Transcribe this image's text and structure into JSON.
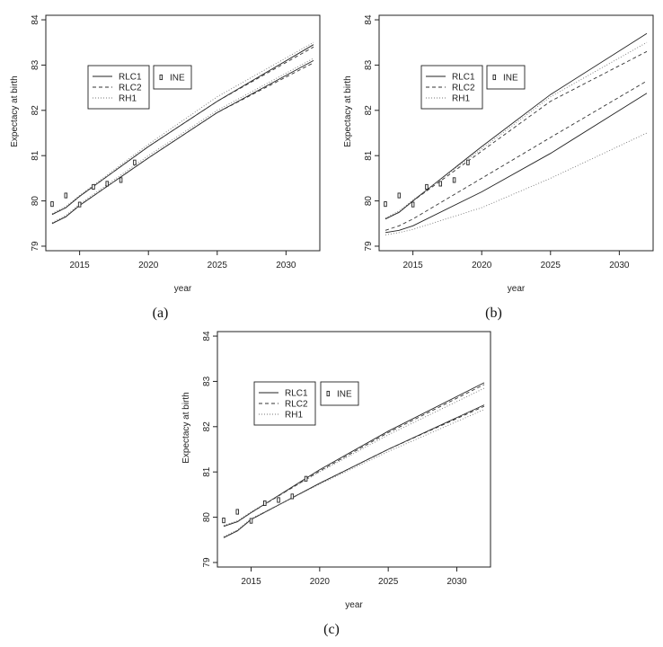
{
  "chart_data": [
    {
      "type": "line",
      "panel_label": "(a)",
      "xlabel": "year",
      "ylabel": "Expectacy at birth",
      "xlim": [
        2013,
        2032
      ],
      "ylim": [
        78.9,
        84.1
      ],
      "xticks": [
        "2015",
        "2020",
        "2025",
        "2030"
      ],
      "yticks": [
        "79",
        "80",
        "81",
        "82",
        "83",
        "84"
      ],
      "legend_location": "upper-left",
      "series": [
        {
          "name": "RLC1",
          "style": "solid",
          "x": [
            2013,
            2014,
            2015,
            2020,
            2025,
            2032
          ],
          "values": [
            79.7,
            79.85,
            80.1,
            81.2,
            82.2,
            83.45
          ]
        },
        {
          "name": "RLC2",
          "style": "dashed",
          "x": [
            2013,
            2014,
            2015,
            2020,
            2025,
            2032
          ],
          "values": [
            79.7,
            79.85,
            80.1,
            81.2,
            82.2,
            83.4
          ]
        },
        {
          "name": "RH1",
          "style": "dotted",
          "x": [
            2013,
            2014,
            2015,
            2020,
            2025,
            2032
          ],
          "values": [
            79.72,
            79.88,
            80.12,
            81.25,
            82.3,
            83.5
          ]
        },
        {
          "name": "",
          "style": "solid",
          "x": [
            2013,
            2014,
            2015,
            2020,
            2025,
            2032
          ],
          "values": [
            79.5,
            79.65,
            79.9,
            80.95,
            81.95,
            83.1
          ]
        },
        {
          "name": "",
          "style": "dashed",
          "x": [
            2013,
            2014,
            2015,
            2020,
            2025,
            2032
          ],
          "values": [
            79.5,
            79.65,
            79.9,
            80.95,
            81.95,
            83.05
          ]
        },
        {
          "name": "",
          "style": "dotted",
          "x": [
            2013,
            2014,
            2015,
            2020,
            2025,
            2032
          ],
          "values": [
            79.52,
            79.68,
            79.93,
            81.0,
            82.0,
            83.15
          ]
        }
      ],
      "points": {
        "name": "INE",
        "x": [
          2013,
          2014,
          2015,
          2016,
          2017,
          2018,
          2019
        ],
        "values": [
          79.93,
          80.12,
          79.92,
          80.31,
          80.38,
          80.46,
          80.85
        ]
      }
    },
    {
      "type": "line",
      "panel_label": "(b)",
      "xlabel": "year",
      "ylabel": "Expectacy at birth",
      "xlim": [
        2013,
        2032
      ],
      "ylim": [
        78.9,
        84.1
      ],
      "xticks": [
        "2015",
        "2020",
        "2025",
        "2030"
      ],
      "yticks": [
        "79",
        "80",
        "81",
        "82",
        "83",
        "84"
      ],
      "legend_location": "upper-left",
      "series": [
        {
          "name": "RLC1",
          "style": "solid",
          "x": [
            2013,
            2014,
            2015,
            2020,
            2025,
            2032
          ],
          "values": [
            79.6,
            79.75,
            80.0,
            81.2,
            82.35,
            83.7
          ]
        },
        {
          "name": "RLC2",
          "style": "dashed",
          "x": [
            2013,
            2014,
            2015,
            2020,
            2025,
            2032
          ],
          "values": [
            79.6,
            79.75,
            80.0,
            81.1,
            82.2,
            83.3
          ]
        },
        {
          "name": "RH1",
          "style": "dotted",
          "x": [
            2013,
            2014,
            2015,
            2020,
            2025,
            2032
          ],
          "values": [
            79.62,
            79.78,
            80.02,
            81.15,
            82.3,
            83.5
          ]
        },
        {
          "name": "",
          "style": "solid",
          "x": [
            2013,
            2014,
            2015,
            2020,
            2025,
            2032
          ],
          "values": [
            79.3,
            79.35,
            79.45,
            80.2,
            81.05,
            82.38
          ]
        },
        {
          "name": "",
          "style": "dashed",
          "x": [
            2013,
            2014,
            2015,
            2020,
            2025,
            2032
          ],
          "values": [
            79.35,
            79.45,
            79.6,
            80.5,
            81.4,
            82.65
          ]
        },
        {
          "name": "",
          "style": "dotted",
          "x": [
            2013,
            2014,
            2015,
            2020,
            2025,
            2032
          ],
          "values": [
            79.25,
            79.3,
            79.37,
            79.85,
            80.5,
            81.5
          ]
        }
      ],
      "points": {
        "name": "INE",
        "x": [
          2013,
          2014,
          2015,
          2016,
          2017,
          2018,
          2019
        ],
        "values": [
          79.93,
          80.12,
          79.92,
          80.31,
          80.38,
          80.46,
          80.85
        ]
      }
    },
    {
      "type": "line",
      "panel_label": "(c)",
      "xlabel": "year",
      "ylabel": "Expectacy at birth",
      "xlim": [
        2013,
        2032
      ],
      "ylim": [
        78.9,
        84.1
      ],
      "xticks": [
        "2015",
        "2020",
        "2025",
        "2030"
      ],
      "yticks": [
        "79",
        "80",
        "81",
        "82",
        "83",
        "84"
      ],
      "legend_location": "upper-left",
      "series": [
        {
          "name": "RLC1",
          "style": "solid",
          "x": [
            2013,
            2014,
            2015,
            2020,
            2025,
            2032
          ],
          "values": [
            79.8,
            79.9,
            80.1,
            81.05,
            81.9,
            82.97
          ]
        },
        {
          "name": "RLC2",
          "style": "dashed",
          "x": [
            2013,
            2014,
            2015,
            2020,
            2025,
            2032
          ],
          "values": [
            79.8,
            79.9,
            80.1,
            81.02,
            81.87,
            82.93
          ]
        },
        {
          "name": "RH1",
          "style": "dotted",
          "x": [
            2013,
            2014,
            2015,
            2020,
            2025,
            2032
          ],
          "values": [
            79.82,
            79.92,
            80.12,
            81.0,
            81.82,
            82.85
          ]
        },
        {
          "name": "",
          "style": "solid",
          "x": [
            2013,
            2014,
            2015,
            2020,
            2025,
            2032
          ],
          "values": [
            79.55,
            79.7,
            79.95,
            80.75,
            81.5,
            82.48
          ]
        },
        {
          "name": "",
          "style": "dashed",
          "x": [
            2013,
            2014,
            2015,
            2020,
            2025,
            2032
          ],
          "values": [
            79.55,
            79.7,
            79.95,
            80.75,
            81.5,
            82.45
          ]
        },
        {
          "name": "",
          "style": "dotted",
          "x": [
            2013,
            2014,
            2015,
            2020,
            2025,
            2032
          ],
          "values": [
            79.57,
            79.72,
            79.97,
            80.73,
            81.45,
            82.38
          ]
        }
      ],
      "points": {
        "name": "INE",
        "x": [
          2013,
          2014,
          2015,
          2016,
          2017,
          2018,
          2019
        ],
        "values": [
          79.93,
          80.12,
          79.92,
          80.31,
          80.38,
          80.46,
          80.85
        ]
      }
    }
  ]
}
